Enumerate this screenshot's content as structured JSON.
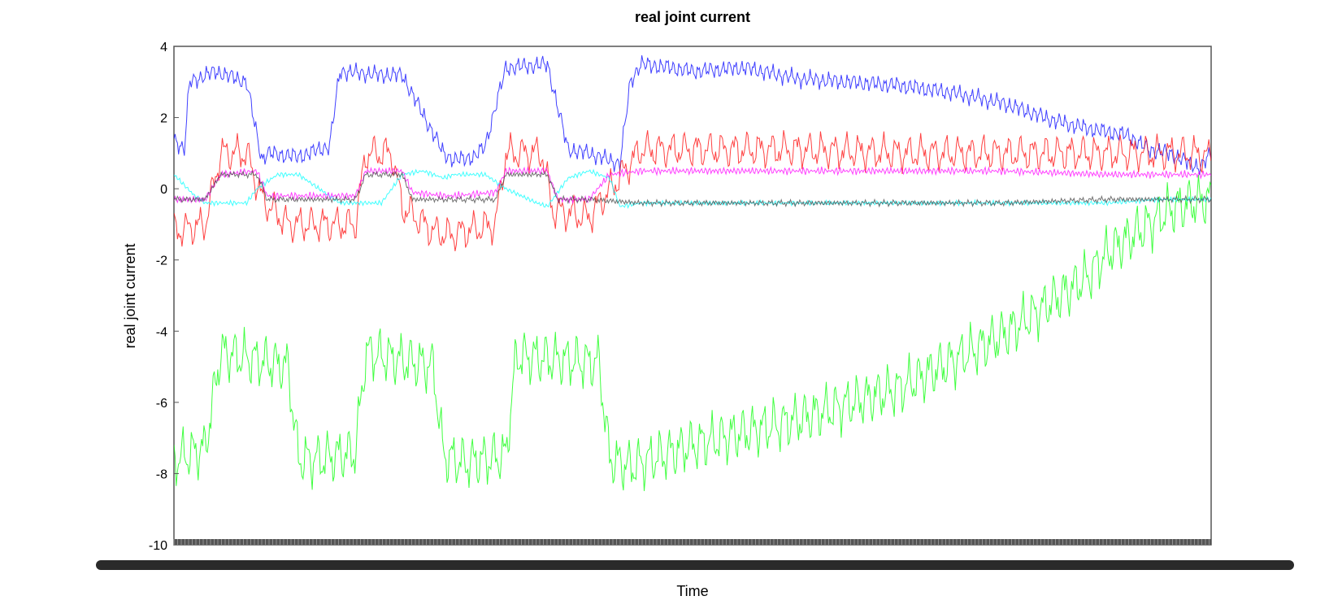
{
  "chart_data": {
    "type": "line",
    "title": "real joint current",
    "xlabel": "Time",
    "ylabel": "real joint current",
    "ylim": [
      -10,
      4
    ],
    "yticks": [
      -10,
      -8,
      -6,
      -4,
      -2,
      0,
      2,
      4
    ],
    "xlim": [
      0,
      100
    ],
    "grid": false,
    "legend": "none",
    "series": [
      {
        "color": "#0000ff",
        "x": [
          0,
          1,
          1.5,
          4,
          7,
          8,
          8.5,
          9,
          12,
          15,
          16,
          20,
          22,
          26,
          27,
          29,
          30,
          32,
          36,
          38,
          40,
          43,
          44,
          45,
          48,
          50,
          55,
          60,
          65,
          70,
          75,
          80,
          85,
          88,
          90,
          92,
          94,
          96,
          98,
          99,
          100
        ],
        "y": [
          1.4,
          1.1,
          3.0,
          3.3,
          3.0,
          1.5,
          0.8,
          1.0,
          0.9,
          1.2,
          3.3,
          3.2,
          3.2,
          1.0,
          0.8,
          0.9,
          1.2,
          3.4,
          3.5,
          1.1,
          1.0,
          0.7,
          3.0,
          3.5,
          3.4,
          3.3,
          3.4,
          3.1,
          3.0,
          2.9,
          2.7,
          2.4,
          1.9,
          1.7,
          1.6,
          1.5,
          1.1,
          1.0,
          0.7,
          0.6,
          1.0
        ],
        "noise": 0.3,
        "noise_period": 0.6
      },
      {
        "color": "#ff0000",
        "x": [
          0,
          3,
          4.5,
          7,
          8.5,
          11,
          12,
          17.5,
          18.5,
          21,
          22,
          25,
          26.5,
          31,
          32,
          35.5,
          36.5,
          40,
          45,
          50,
          60,
          70,
          80,
          90,
          95,
          98,
          100
        ],
        "y": [
          -1.2,
          -1.0,
          1.0,
          1.0,
          -0.3,
          -1.0,
          -1.0,
          -1.0,
          1.0,
          1.0,
          -0.5,
          -1.2,
          -1.3,
          -1.0,
          1.0,
          1.0,
          -0.6,
          -0.8,
          1.1,
          1.1,
          1.1,
          1.0,
          1.0,
          1.0,
          1.0,
          1.0,
          0.9
        ],
        "noise": 0.6,
        "noise_period": 1.2
      },
      {
        "color": "#00ff00",
        "x": [
          0,
          3,
          4.5,
          11,
          12,
          14,
          17.5,
          18.5,
          25,
          26,
          28,
          32,
          33,
          41,
          42,
          44,
          50,
          60,
          70,
          80,
          88,
          90,
          92,
          94,
          96,
          98,
          100
        ],
        "y": [
          -7.6,
          -7.3,
          -4.6,
          -5.0,
          -7.6,
          -7.6,
          -7.4,
          -4.6,
          -5.0,
          -7.5,
          -7.7,
          -7.5,
          -4.7,
          -4.9,
          -7.6,
          -7.8,
          -7.2,
          -6.5,
          -5.6,
          -4.1,
          -2.5,
          -1.8,
          -1.4,
          -1.0,
          -0.6,
          -0.4,
          -0.3
        ],
        "noise": 0.9,
        "noise_period": 1.0
      },
      {
        "color": "#00ffff",
        "x": [
          0,
          2,
          3,
          7,
          8,
          10,
          12,
          14,
          16,
          20,
          21,
          22,
          24,
          26,
          27,
          30,
          32,
          35,
          36,
          38,
          40,
          42,
          43,
          45,
          50,
          55,
          60,
          65,
          70,
          75,
          80,
          85,
          90,
          95,
          100
        ],
        "y": [
          0.4,
          -0.2,
          -0.4,
          -0.4,
          0.0,
          0.4,
          0.4,
          0.0,
          -0.4,
          -0.4,
          0.0,
          0.4,
          0.5,
          0.3,
          0.4,
          0.4,
          0.0,
          -0.4,
          -0.5,
          0.3,
          0.5,
          0.3,
          -0.5,
          -0.4,
          -0.4,
          -0.4,
          -0.4,
          -0.4,
          -0.4,
          -0.4,
          -0.4,
          -0.4,
          -0.4,
          -0.3,
          -0.3
        ],
        "noise": 0.08,
        "noise_period": 0.35
      },
      {
        "color": "#ff00ff",
        "x": [
          0,
          3,
          4.5,
          8,
          9,
          12,
          14,
          17.5,
          18.5,
          22,
          23,
          26,
          27,
          31,
          32,
          36,
          37,
          40,
          42,
          45,
          50,
          60,
          70,
          80,
          90,
          95,
          100
        ],
        "y": [
          -0.3,
          -0.3,
          0.4,
          0.5,
          -0.2,
          -0.2,
          -0.2,
          -0.2,
          0.5,
          0.5,
          -0.1,
          -0.2,
          -0.2,
          -0.1,
          0.5,
          0.5,
          -0.3,
          -0.3,
          0.4,
          0.5,
          0.5,
          0.5,
          0.5,
          0.5,
          0.4,
          0.4,
          0.4
        ],
        "noise": 0.12,
        "noise_period": 0.35
      },
      {
        "color": "#444444",
        "x": [
          0,
          3,
          4.5,
          8,
          9,
          12,
          14,
          17.5,
          18.5,
          22,
          23,
          26,
          28,
          31,
          32,
          36,
          37,
          40,
          45,
          50,
          60,
          70,
          80,
          90,
          95,
          100
        ],
        "y": [
          -0.3,
          -0.3,
          0.4,
          0.4,
          -0.3,
          -0.3,
          -0.3,
          -0.3,
          0.4,
          0.4,
          -0.3,
          -0.3,
          -0.3,
          -0.3,
          0.4,
          0.4,
          -0.3,
          -0.3,
          -0.4,
          -0.4,
          -0.4,
          -0.4,
          -0.4,
          -0.3,
          -0.3,
          -0.3
        ],
        "noise": 0.1,
        "noise_period": 0.3
      }
    ]
  }
}
